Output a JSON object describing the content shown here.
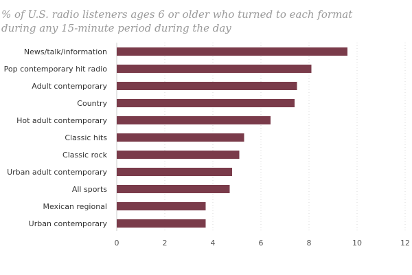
{
  "chart_data": {
    "type": "bar",
    "orientation": "horizontal",
    "title_lines": [
      "% of U.S. radio listeners ages 6 or older who turned to each format",
      "during any 15-minute period during the day"
    ],
    "categories": [
      "News/talk/information",
      "Pop contemporary hit radio",
      "Adult contemporary",
      "Country",
      "Hot adult contemporary",
      "Classic hits",
      "Classic rock",
      "Urban adult contemporary",
      "All sports",
      "Mexican regional",
      "Urban contemporary"
    ],
    "values": [
      9.6,
      8.1,
      7.5,
      7.4,
      6.4,
      5.3,
      5.1,
      4.8,
      4.7,
      3.7,
      3.7
    ],
    "xlim": [
      0,
      12
    ],
    "xticks": [
      0,
      2,
      4,
      6,
      8,
      10,
      12
    ],
    "grid": true,
    "legend": "none",
    "bar_color": "#7a3b4a",
    "tick_label_color": "#555555",
    "category_label_color": "#333333",
    "grid_color": "#d8d8d8",
    "axis_color": "#cccccc",
    "title_color": "#9a9a9a"
  }
}
